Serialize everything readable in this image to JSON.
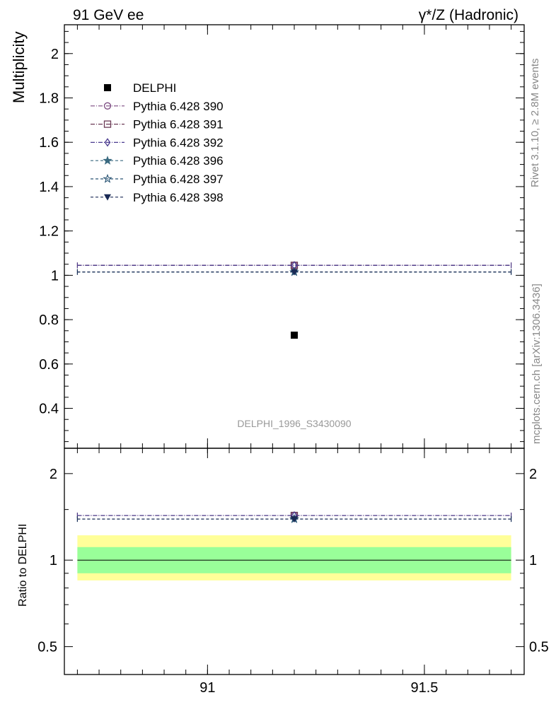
{
  "header": {
    "left": "91 GeV ee",
    "right": "γ*/Z (Hadronic)"
  },
  "side_labels": {
    "rivet": "Rivet 3.1.10, ≥ 2.8M events",
    "mcplots": "mcplots.cern.ch [arXiv:1306.3436]"
  },
  "analysis_label": "DELPHI_1996_S3430090",
  "colors": {
    "band_inner": "#99ff99",
    "band_outer": "#ffff99"
  },
  "chart_data": [
    {
      "type": "scatter",
      "panel": "main",
      "ylabel": "Multiplicity",
      "xlim": [
        90.67,
        91.73
      ],
      "ylim": [
        0.22,
        2.13
      ],
      "yticks": [
        0.4,
        0.6,
        0.8,
        1,
        1.2,
        1.4,
        1.6,
        1.8,
        2
      ],
      "ytick_labels": [
        "0.4",
        "0.6",
        "0.8",
        "1",
        "1.2",
        "1.4",
        "1.6",
        "1.8",
        "2"
      ],
      "legend_position": "top-left",
      "series": [
        {
          "name": "DELPHI",
          "marker": "square-filled",
          "color": "#000000",
          "dash": "none",
          "x": 91.2,
          "y": 0.73,
          "xerr": [
            91.2,
            91.2
          ]
        },
        {
          "name": "Pythia 6.428 390",
          "marker": "circle-open",
          "color": "#7b4a80",
          "dash": "6,2,1,2",
          "x": 91.2,
          "y": 1.045,
          "xerr": [
            90.7,
            91.7
          ]
        },
        {
          "name": "Pythia 6.428 391",
          "marker": "square-open",
          "color": "#6b3a55",
          "dash": "6,2,1,2",
          "x": 91.2,
          "y": 1.045,
          "xerr": [
            90.7,
            91.7
          ]
        },
        {
          "name": "Pythia 6.428 392",
          "marker": "diamond-open",
          "color": "#4a3a8f",
          "dash": "6,2,1,2",
          "x": 91.2,
          "y": 1.045,
          "xerr": [
            90.7,
            91.7
          ]
        },
        {
          "name": "Pythia 6.428 396",
          "marker": "star-filled",
          "color": "#3a6a80",
          "dash": "4,3",
          "x": 91.2,
          "y": 1.015,
          "xerr": [
            90.7,
            91.7
          ]
        },
        {
          "name": "Pythia 6.428 397",
          "marker": "star-open",
          "color": "#2a5575",
          "dash": "4,3",
          "x": 91.2,
          "y": 1.015,
          "xerr": [
            90.7,
            91.7
          ]
        },
        {
          "name": "Pythia 6.428 398",
          "marker": "triangle-down-filled",
          "color": "#1a2a55",
          "dash": "4,3",
          "x": 91.2,
          "y": 1.015,
          "xerr": [
            90.7,
            91.7
          ]
        }
      ]
    },
    {
      "type": "scatter",
      "panel": "ratio",
      "ylabel": "Ratio to DELPHI",
      "xlim": [
        90.67,
        91.73
      ],
      "ylim": [
        0.4,
        2.45
      ],
      "yticks": [
        0.5,
        1,
        2
      ],
      "ytick_labels": [
        "0.5",
        "1",
        "2"
      ],
      "xticks": [
        91,
        91.5
      ],
      "xtick_labels": [
        "91",
        "91.5"
      ],
      "reference": 1,
      "bands": {
        "inner": [
          0.9,
          1.11
        ],
        "outer": [
          0.85,
          1.22
        ],
        "x": [
          90.7,
          91.7
        ]
      },
      "series": [
        {
          "name": "Pythia 6.428 390",
          "color": "#7b4a80",
          "dash": "6,2,1,2",
          "x": 91.2,
          "y": 1.43,
          "xerr": [
            90.7,
            91.7
          ]
        },
        {
          "name": "Pythia 6.428 391",
          "color": "#6b3a55",
          "dash": "6,2,1,2",
          "x": 91.2,
          "y": 1.43,
          "xerr": [
            90.7,
            91.7
          ]
        },
        {
          "name": "Pythia 6.428 392",
          "color": "#4a3a8f",
          "dash": "6,2,1,2",
          "x": 91.2,
          "y": 1.43,
          "xerr": [
            90.7,
            91.7
          ]
        },
        {
          "name": "Pythia 6.428 396",
          "color": "#3a6a80",
          "dash": "4,3",
          "x": 91.2,
          "y": 1.39,
          "xerr": [
            90.7,
            91.7
          ]
        },
        {
          "name": "Pythia 6.428 397",
          "color": "#2a5575",
          "dash": "4,3",
          "x": 91.2,
          "y": 1.39,
          "xerr": [
            90.7,
            91.7
          ]
        },
        {
          "name": "Pythia 6.428 398",
          "color": "#1a2a55",
          "dash": "4,3",
          "x": 91.2,
          "y": 1.39,
          "xerr": [
            90.7,
            91.7
          ]
        }
      ]
    }
  ]
}
